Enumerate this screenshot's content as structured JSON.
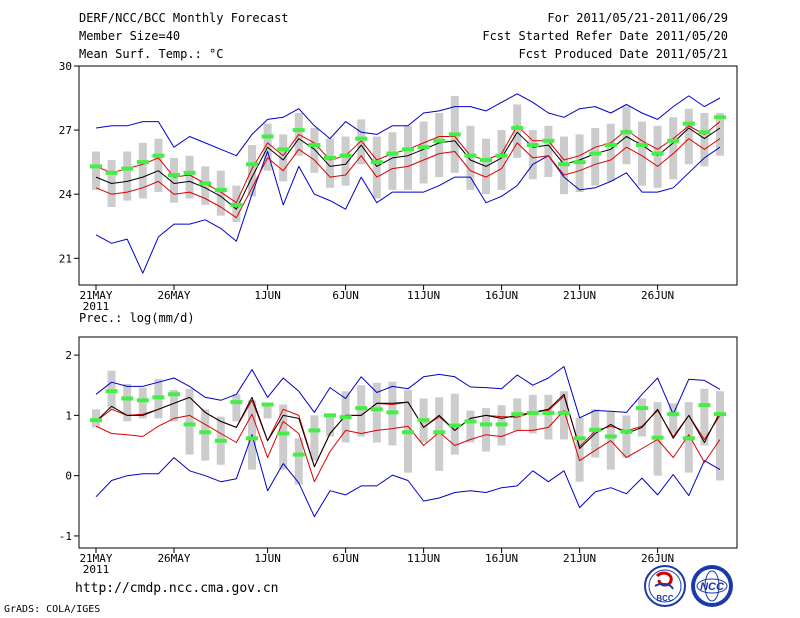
{
  "header": {
    "title": "DERF/NCC/BCC Monthly Forecast",
    "member": "Member Size=40",
    "variable": "Mean Surf. Temp.: °C",
    "period": "For 2011/05/21-2011/06/29",
    "started": "Fcst Started Refer Date 2011/05/20",
    "produced": "Fcst Produced Date 2011/05/21"
  },
  "precip_label": "Prec.: log(mm/d)",
  "footer": {
    "url": "http://cmdp.ncc.cma.gov.cn",
    "grads": "GrADS: COLA/IGES"
  },
  "logos": {
    "bcc": "BCC",
    "ncc": "NCC"
  },
  "colors": {
    "bound": "#0000cc",
    "mean": "#000000",
    "obs": "#dd0000",
    "green": "#44ee44",
    "box": "#cccccc"
  },
  "chart_data": [
    {
      "type": "line",
      "name": "temperature",
      "ylabel": "Mean Surf. Temp.: °C",
      "ylim": [
        20,
        30
      ],
      "yticks": [
        21,
        24,
        27,
        30
      ],
      "days": 40,
      "xticks": [
        {
          "day": 0,
          "label": "21MAY",
          "sub": "2011"
        },
        {
          "day": 5,
          "label": "26MAY"
        },
        {
          "day": 11,
          "label": "1JUN"
        },
        {
          "day": 16,
          "label": "6JUN"
        },
        {
          "day": 21,
          "label": "11JUN"
        },
        {
          "day": 26,
          "label": "16JUN"
        },
        {
          "day": 31,
          "label": "21JUN"
        },
        {
          "day": 36,
          "label": "26JUN"
        }
      ],
      "series": [
        {
          "name": "upper",
          "values": [
            27.1,
            27.2,
            27.2,
            27.4,
            27.4,
            26.2,
            26.7,
            26.4,
            26.1,
            25.8,
            26.8,
            27.5,
            27.6,
            28.0,
            27.2,
            26.6,
            27.4,
            26.9,
            26.8,
            27.2,
            27.2,
            27.8,
            27.9,
            28.1,
            28.1,
            27.9,
            28.3,
            28.7,
            28.3,
            27.8,
            27.6,
            28.0,
            28.1,
            27.8,
            28.2,
            27.8,
            27.5,
            28.1,
            28.6,
            28.1,
            28.5
          ]
        },
        {
          "name": "upper_red",
          "values": [
            25.3,
            25.0,
            25.2,
            25.4,
            25.7,
            24.8,
            24.9,
            24.5,
            24.1,
            23.6,
            25.2,
            26.4,
            25.8,
            26.8,
            26.4,
            25.6,
            25.8,
            26.5,
            25.6,
            25.9,
            26.1,
            26.4,
            26.7,
            26.7,
            25.8,
            25.6,
            25.9,
            27.2,
            26.5,
            26.5,
            25.6,
            25.8,
            26.2,
            26.4,
            27.0,
            26.5,
            26.1,
            26.6,
            27.2,
            26.8,
            27.4
          ]
        },
        {
          "name": "mean",
          "values": [
            24.8,
            24.5,
            24.6,
            24.8,
            25.1,
            24.5,
            24.6,
            24.3,
            23.9,
            23.3,
            24.8,
            26.2,
            25.6,
            26.6,
            26.1,
            25.3,
            25.4,
            26.3,
            25.3,
            25.7,
            25.8,
            26.1,
            26.4,
            26.5,
            25.6,
            25.3,
            25.7,
            26.9,
            26.2,
            26.3,
            25.4,
            25.6,
            25.9,
            26.1,
            26.7,
            26.3,
            25.8,
            26.4,
            27.1,
            26.6,
            27.1
          ]
        },
        {
          "name": "lower_red",
          "values": [
            24.3,
            24.0,
            24.1,
            24.3,
            24.6,
            24.0,
            24.1,
            23.8,
            23.4,
            22.9,
            24.3,
            25.7,
            25.1,
            26.1,
            25.6,
            24.8,
            24.9,
            25.8,
            24.8,
            25.2,
            25.3,
            25.6,
            25.9,
            26.0,
            25.1,
            24.8,
            25.2,
            26.4,
            25.7,
            25.8,
            24.9,
            25.1,
            25.4,
            25.6,
            26.2,
            25.8,
            25.3,
            25.9,
            26.6,
            26.1,
            26.6
          ]
        },
        {
          "name": "lower",
          "values": [
            22.1,
            21.7,
            21.9,
            20.3,
            22.0,
            22.6,
            22.6,
            22.8,
            22.4,
            21.8,
            24.0,
            26.0,
            23.5,
            25.3,
            24.0,
            23.7,
            23.3,
            24.8,
            23.6,
            24.1,
            24.1,
            24.1,
            24.4,
            24.8,
            24.8,
            23.6,
            23.9,
            24.4,
            25.4,
            25.8,
            24.8,
            24.2,
            24.3,
            24.6,
            25.0,
            24.1,
            24.1,
            24.3,
            25.0,
            25.7,
            26.2
          ]
        },
        {
          "name": "ens_green",
          "values": [
            25.3,
            25.0,
            25.2,
            25.5,
            25.8,
            24.9,
            25.0,
            24.5,
            24.2,
            23.5,
            25.4,
            26.7,
            26.1,
            27.0,
            26.3,
            25.7,
            25.8,
            26.6,
            25.5,
            25.9,
            26.1,
            26.2,
            26.5,
            26.8,
            25.8,
            25.6,
            25.8,
            27.1,
            26.3,
            26.5,
            25.4,
            25.5,
            25.9,
            26.3,
            26.9,
            26.3,
            25.9,
            26.5,
            27.3,
            26.9,
            27.6
          ]
        },
        {
          "name": "box_top",
          "values": [
            26.0,
            25.6,
            26.0,
            26.4,
            26.6,
            25.7,
            25.8,
            25.3,
            25.1,
            24.4,
            26.3,
            27.3,
            26.8,
            27.8,
            27.1,
            26.6,
            26.7,
            27.5,
            26.7,
            26.9,
            27.2,
            27.4,
            27.8,
            28.6,
            27.2,
            26.6,
            27.0,
            28.2,
            27.0,
            27.2,
            26.7,
            26.8,
            27.1,
            27.3,
            28.1,
            27.4,
            27.2,
            27.6,
            28.0,
            27.8,
            27.8
          ]
        },
        {
          "name": "box_bottom",
          "values": [
            24.2,
            23.4,
            23.7,
            23.8,
            24.1,
            23.6,
            23.8,
            23.5,
            23.0,
            22.7,
            23.9,
            25.1,
            24.6,
            25.8,
            25.0,
            24.3,
            24.4,
            25.4,
            23.8,
            24.2,
            24.2,
            24.5,
            24.8,
            25.0,
            24.2,
            24.0,
            24.2,
            25.7,
            24.7,
            24.8,
            24.0,
            24.1,
            24.4,
            24.6,
            25.4,
            24.4,
            24.3,
            24.7,
            25.4,
            25.3,
            25.8
          ]
        }
      ]
    },
    {
      "type": "line",
      "name": "precipitation",
      "ylabel": "Prec.: log(mm/d)",
      "ylim": [
        -1.2,
        2.2
      ],
      "yticks": [
        -1,
        0,
        1,
        2
      ],
      "days": 40,
      "xticks": [
        {
          "day": 0,
          "label": "21MAY",
          "sub": "2011"
        },
        {
          "day": 5,
          "label": "26MAY"
        },
        {
          "day": 11,
          "label": "1JUN"
        },
        {
          "day": 16,
          "label": "6JUN"
        },
        {
          "day": 21,
          "label": "11JUN"
        },
        {
          "day": 26,
          "label": "16JUN"
        },
        {
          "day": 31,
          "label": "21JUN"
        },
        {
          "day": 36,
          "label": "26JUN"
        }
      ],
      "series": [
        {
          "name": "upper",
          "values": [
            1.35,
            1.55,
            1.48,
            1.48,
            1.55,
            1.62,
            1.48,
            1.3,
            1.25,
            1.35,
            1.76,
            1.3,
            1.62,
            1.4,
            1.05,
            1.46,
            1.28,
            1.64,
            1.38,
            1.48,
            1.44,
            1.64,
            1.68,
            1.64,
            1.47,
            1.46,
            1.44,
            1.67,
            1.5,
            1.62,
            1.81,
            0.96,
            1.08,
            1.07,
            1.05,
            1.35,
            1.62,
            1.02,
            1.6,
            1.58,
            1.43
          ]
        },
        {
          "name": "mean",
          "values": [
            0.9,
            1.15,
            1.0,
            1.0,
            1.1,
            1.2,
            1.3,
            1.05,
            0.9,
            0.8,
            1.3,
            0.58,
            1.0,
            0.95,
            0.15,
            0.7,
            1.0,
            1.0,
            1.2,
            1.2,
            1.22,
            0.8,
            1.0,
            0.75,
            0.95,
            1.0,
            0.95,
            1.0,
            1.05,
            1.1,
            1.35,
            0.45,
            0.7,
            0.85,
            0.7,
            0.8,
            1.1,
            0.62,
            1.0,
            0.55,
            1.05
          ]
        },
        {
          "name": "obs_black",
          "values": [
            0.9,
            1.1,
            1.0,
            1.02,
            1.1,
            1.2,
            1.3,
            1.05,
            0.9,
            0.8,
            1.25,
            0.58,
            1.1,
            1.0,
            0.15,
            0.7,
            1.0,
            1.0,
            1.2,
            1.18,
            1.22,
            0.8,
            0.98,
            0.75,
            0.95,
            1.0,
            0.98,
            0.97,
            1.05,
            1.08,
            1.32,
            0.48,
            0.74,
            0.82,
            0.74,
            0.82,
            1.08,
            0.65,
            1.0,
            0.6,
            1.0
          ]
        },
        {
          "name": "lower_red",
          "values": [
            0.82,
            0.7,
            0.68,
            0.65,
            0.82,
            0.95,
            1.0,
            0.85,
            0.7,
            0.55,
            1.02,
            0.3,
            0.9,
            0.7,
            -0.1,
            0.4,
            0.75,
            0.7,
            0.75,
            0.78,
            0.82,
            0.5,
            0.72,
            0.5,
            0.6,
            0.68,
            0.65,
            0.75,
            0.75,
            0.8,
            1.08,
            0.25,
            0.42,
            0.58,
            0.3,
            0.45,
            0.6,
            0.3,
            0.68,
            0.22,
            0.6
          ]
        },
        {
          "name": "lower",
          "values": [
            -0.35,
            -0.08,
            0.0,
            0.03,
            0.03,
            0.3,
            0.08,
            0.0,
            -0.1,
            -0.05,
            0.68,
            -0.25,
            0.2,
            -0.12,
            -0.68,
            -0.25,
            -0.32,
            -0.17,
            -0.17,
            0.01,
            -0.08,
            -0.42,
            -0.37,
            -0.28,
            -0.25,
            -0.28,
            -0.2,
            -0.17,
            0.08,
            -0.1,
            0.08,
            -0.53,
            -0.27,
            -0.2,
            -0.3,
            -0.04,
            -0.32,
            0.02,
            -0.33,
            0.25,
            0.1
          ]
        },
        {
          "name": "ens_green",
          "values": [
            0.92,
            1.4,
            1.28,
            1.25,
            1.3,
            1.35,
            0.85,
            0.72,
            0.58,
            1.22,
            0.62,
            1.18,
            0.7,
            0.35,
            0.75,
            1.0,
            0.97,
            1.12,
            1.1,
            1.05,
            0.72,
            0.92,
            0.72,
            0.83,
            0.9,
            0.85,
            0.85,
            1.02,
            1.04,
            1.04,
            1.04,
            0.62,
            0.76,
            0.65,
            0.73,
            1.12,
            0.63,
            1.02,
            0.62,
            1.17,
            1.02
          ]
        },
        {
          "name": "box_top",
          "values": [
            1.1,
            1.74,
            1.52,
            1.46,
            1.6,
            1.42,
            1.44,
            1.1,
            0.98,
            1.35,
            1.25,
            1.2,
            1.18,
            0.62,
            1.0,
            1.0,
            1.4,
            1.5,
            1.54,
            1.56,
            1.42,
            1.28,
            1.3,
            1.36,
            1.08,
            1.12,
            1.17,
            1.28,
            1.34,
            1.34,
            1.4,
            0.96,
            1.1,
            1.06,
            1.0,
            1.28,
            1.22,
            1.2,
            1.22,
            1.44,
            1.4
          ]
        },
        {
          "name": "box_bottom",
          "values": [
            0.8,
            1.1,
            0.9,
            0.95,
            0.95,
            0.9,
            0.35,
            0.25,
            0.18,
            0.9,
            0.1,
            0.95,
            0.1,
            -0.15,
            0.25,
            0.65,
            0.55,
            0.65,
            0.55,
            0.5,
            0.05,
            0.55,
            0.08,
            0.35,
            0.55,
            0.4,
            0.5,
            0.75,
            0.7,
            0.6,
            0.6,
            -0.1,
            0.3,
            0.1,
            0.3,
            0.65,
            0.0,
            0.7,
            0.05,
            0.5,
            -0.08
          ]
        }
      ]
    }
  ]
}
